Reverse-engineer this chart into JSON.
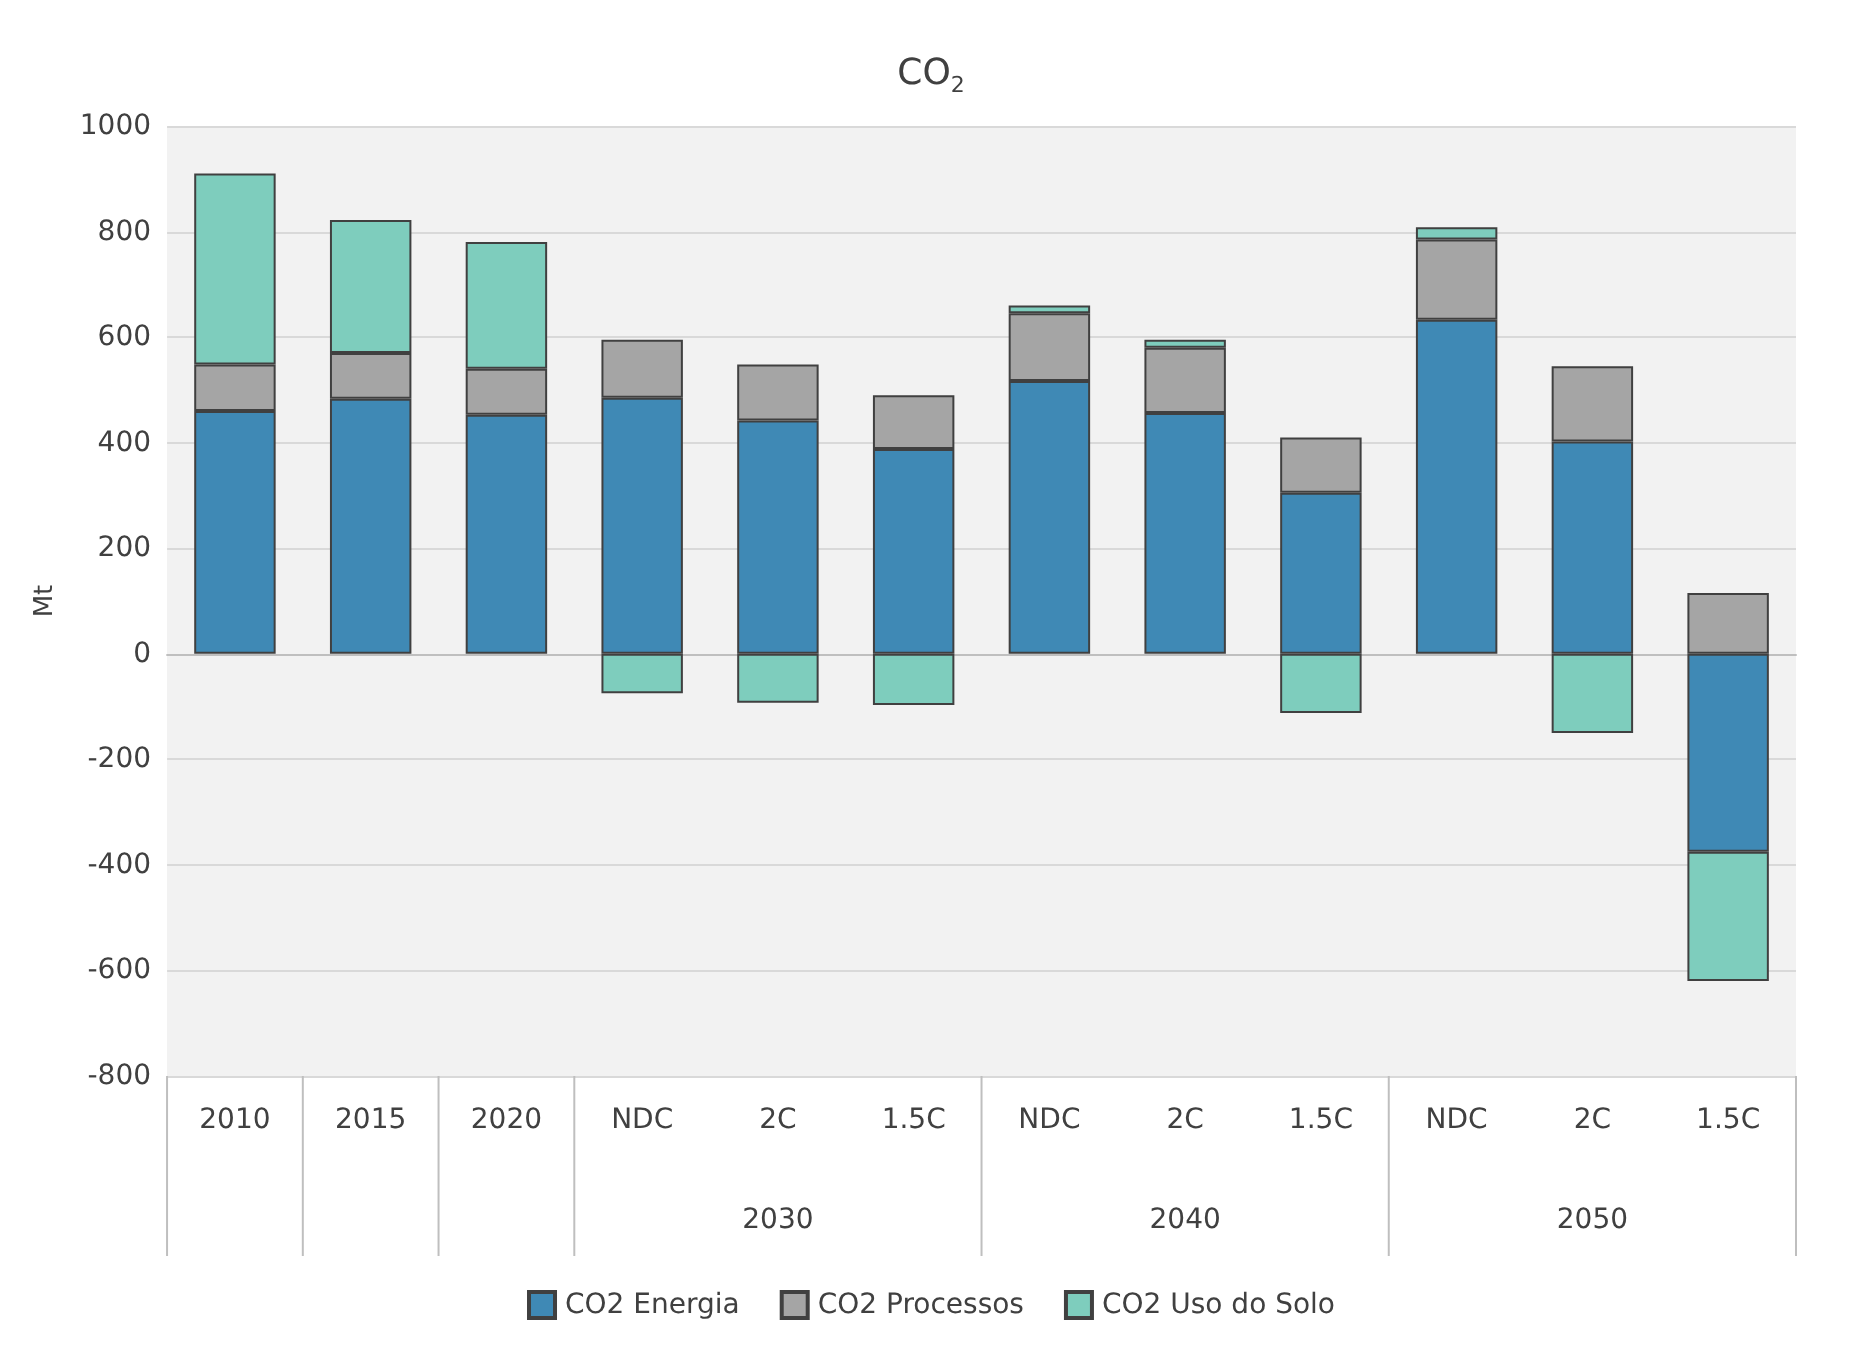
{
  "chart_data": {
    "type": "bar",
    "title": "CO$_{2}$",
    "ylabel": "Mt",
    "stacked": true,
    "categories": [
      "2010",
      "2015",
      "2020",
      "NDC",
      "2C",
      "1.5C",
      "NDC",
      "2C",
      "1.5C",
      "NDC",
      "2C",
      "1.5C"
    ],
    "annotations": [
      "2030",
      "2040",
      "2050"
    ],
    "series": [
      {
        "name": "CO2 Energia",
        "color": "#3f89b5",
        "values": [
          460,
          483,
          453,
          485,
          442,
          388,
          517,
          456,
          305,
          633,
          402,
          -375
        ]
      },
      {
        "name": "CO2 Processos",
        "color": "#a5a5a5",
        "values": [
          88,
          87,
          87,
          110,
          106,
          102,
          128,
          124,
          105,
          152,
          143,
          115
        ]
      },
      {
        "name": "CO2 Uso do Solo",
        "color": "#7ecdbd",
        "values": [
          362,
          252,
          240,
          -75,
          -93,
          -97,
          15,
          15,
          -112,
          23,
          -150,
          -245
        ]
      }
    ],
    "ylim": [
      -800,
      1000
    ],
    "yticks": [
      -800,
      -600,
      -400,
      -200,
      0,
      200,
      400,
      600,
      800,
      1000
    ],
    "grid": "y",
    "legend": "bottom"
  }
}
